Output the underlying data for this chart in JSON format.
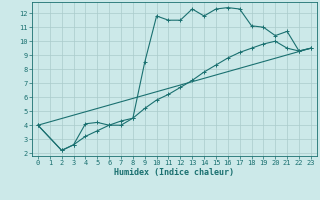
{
  "title": "",
  "xlabel": "Humidex (Indice chaleur)",
  "bg_color": "#cce9e9",
  "grid_color": "#aacccc",
  "line_color": "#1a7070",
  "xlim": [
    -0.5,
    23.5
  ],
  "ylim": [
    1.8,
    12.8
  ],
  "xticks": [
    0,
    1,
    2,
    3,
    4,
    5,
    6,
    7,
    8,
    9,
    10,
    11,
    12,
    13,
    14,
    15,
    16,
    17,
    18,
    19,
    20,
    21,
    22,
    23
  ],
  "yticks": [
    2,
    3,
    4,
    5,
    6,
    7,
    8,
    9,
    10,
    11,
    12
  ],
  "series1_x": [
    0,
    2,
    3,
    4,
    5,
    6,
    7,
    8,
    9,
    10,
    11,
    12,
    13,
    14,
    15,
    16,
    17,
    18,
    19,
    20,
    21,
    22,
    23
  ],
  "series1_y": [
    4.0,
    2.2,
    2.6,
    4.1,
    4.2,
    4.0,
    4.0,
    4.5,
    8.5,
    11.8,
    11.5,
    11.5,
    12.3,
    11.8,
    12.3,
    12.4,
    12.3,
    11.1,
    11.0,
    10.4,
    10.7,
    9.3,
    9.5
  ],
  "series2_x": [
    0,
    2,
    3,
    4,
    5,
    6,
    7,
    8,
    9,
    10,
    11,
    12,
    13,
    14,
    15,
    16,
    17,
    18,
    19,
    20,
    21,
    22,
    23
  ],
  "series2_y": [
    4.0,
    2.2,
    2.6,
    3.2,
    3.6,
    4.0,
    4.3,
    4.5,
    5.2,
    5.8,
    6.2,
    6.7,
    7.2,
    7.8,
    8.3,
    8.8,
    9.2,
    9.5,
    9.8,
    10.0,
    9.5,
    9.3,
    9.5
  ],
  "series3_x": [
    0,
    23
  ],
  "series3_y": [
    4.0,
    9.5
  ]
}
